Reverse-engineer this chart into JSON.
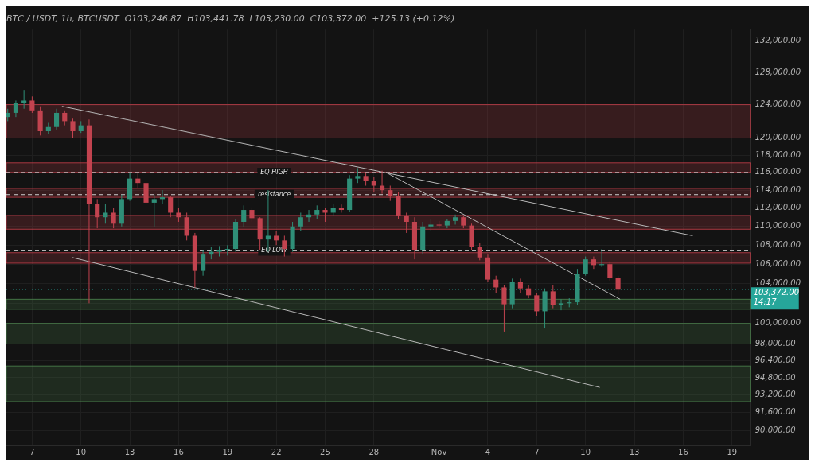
{
  "chart_data": {
    "type": "candlestick",
    "title": "BTC / USDT, 1h, BTCUSDT  O103,246.87  H103,441.78  L103,230.00  C103,372.00  +125.13 (+0.12%)",
    "x": [
      "--10-05T12:00",
      "--10-06T00:00",
      "--10-06T12:00",
      "--10-07T00:00",
      "--10-07T12:00",
      "--10-08T00:00",
      "--10-08T12:00",
      "--10-09T00:00",
      "--10-09T12:00",
      "--10-10T00:00",
      "--10-10T12:00",
      "--10-11T00:00",
      "--10-11T12:00",
      "--10-12T00:00",
      "--10-12T12:00",
      "--10-13T00:00",
      "--10-13T12:00",
      "--10-14T00:00",
      "--10-14T12:00",
      "--10-15T00:00",
      "--10-15T12:00",
      "--10-16T00:00",
      "--10-16T12:00",
      "--10-17T00:00",
      "--10-17T12:00",
      "--10-18T00:00",
      "--10-18T12:00",
      "--10-19T00:00",
      "--10-19T12:00",
      "--10-20T00:00",
      "--10-20T12:00",
      "--10-21T00:00",
      "--10-21T12:00",
      "--10-22T00:00",
      "--10-22T12:00",
      "--10-23T00:00",
      "--10-23T12:00",
      "--10-24T00:00",
      "--10-24T12:00",
      "--10-25T00:00",
      "--10-25T12:00",
      "--10-26T00:00",
      "--10-26T12:00",
      "--10-27T00:00",
      "--10-27T12:00",
      "--10-28T00:00",
      "--10-28T12:00",
      "--10-29T00:00",
      "--10-29T12:00",
      "--10-30T00:00",
      "--10-30T12:00",
      "--10-31T00:00",
      "--10-31T12:00",
      "--11-01T00:00",
      "--11-01T12:00",
      "--11-02T00:00",
      "--11-02T12:00",
      "--11-03T00:00",
      "--11-03T12:00",
      "--11-04T00:00",
      "--11-04T12:00",
      "--11-05T00:00",
      "--11-05T12:00",
      "--11-06T00:00",
      "--11-06T12:00",
      "--11-07T00:00",
      "--11-07T12:00",
      "--11-08T00:00",
      "--11-08T12:00",
      "--11-09T00:00",
      "--11-09T12:00",
      "--11-10T00:00",
      "--11-10T12:00",
      "--11-11T00:00",
      "--11-11T12:00",
      "--11-12T00:00"
    ],
    "ohlc": [
      [
        122500,
        123500,
        122000,
        123000
      ],
      [
        123000,
        124500,
        122500,
        124200
      ],
      [
        124200,
        125800,
        123500,
        124500
      ],
      [
        124500,
        125000,
        123000,
        123300
      ],
      [
        123300,
        123800,
        120300,
        120800
      ],
      [
        120800,
        121800,
        120500,
        121300
      ],
      [
        121300,
        123500,
        121000,
        123000
      ],
      [
        123000,
        123300,
        121500,
        122000
      ],
      [
        122000,
        122300,
        120000,
        120800
      ],
      [
        120800,
        122000,
        120600,
        121500
      ],
      [
        121500,
        122200,
        102000,
        112500
      ],
      [
        112500,
        113000,
        109800,
        111000
      ],
      [
        111000,
        112500,
        110300,
        111500
      ],
      [
        111500,
        112000,
        109800,
        110300
      ],
      [
        110300,
        113500,
        110000,
        113000
      ],
      [
        113000,
        116000,
        112800,
        115300
      ],
      [
        115300,
        116000,
        114200,
        114800
      ],
      [
        114800,
        115000,
        112300,
        112600
      ],
      [
        112600,
        113500,
        110000,
        113000
      ],
      [
        113000,
        114000,
        112500,
        113200
      ],
      [
        113200,
        113300,
        111000,
        111500
      ],
      [
        111500,
        112000,
        110500,
        111000
      ],
      [
        111000,
        111500,
        108500,
        109000
      ],
      [
        109000,
        109300,
        103600,
        105300
      ],
      [
        105300,
        107500,
        104800,
        107000
      ],
      [
        107000,
        107800,
        106500,
        107300
      ],
      [
        107300,
        107900,
        106800,
        107500
      ],
      [
        107500,
        108000,
        106900,
        107600
      ],
      [
        107600,
        110800,
        107300,
        110500
      ],
      [
        110500,
        112300,
        110000,
        111800
      ],
      [
        111800,
        112100,
        110500,
        110900
      ],
      [
        110900,
        111000,
        107500,
        108600
      ],
      [
        108600,
        114000,
        107300,
        109000
      ],
      [
        109000,
        109500,
        108000,
        108500
      ],
      [
        108500,
        109000,
        106800,
        107600
      ],
      [
        107600,
        110500,
        107300,
        110000
      ],
      [
        110000,
        111500,
        109500,
        111000
      ],
      [
        111000,
        111800,
        110500,
        111300
      ],
      [
        111300,
        112300,
        110800,
        111800
      ],
      [
        111800,
        112000,
        110500,
        111500
      ],
      [
        111500,
        112500,
        111200,
        112000
      ],
      [
        112000,
        112400,
        111500,
        111800
      ],
      [
        111800,
        115700,
        111600,
        115300
      ],
      [
        115300,
        116500,
        114800,
        115600
      ],
      [
        115600,
        116000,
        114500,
        115000
      ],
      [
        115000,
        115500,
        113800,
        114500
      ],
      [
        114500,
        116200,
        113600,
        114000
      ],
      [
        114000,
        114500,
        112800,
        113300
      ],
      [
        113300,
        113800,
        110800,
        111200
      ],
      [
        111200,
        111500,
        109300,
        110500
      ],
      [
        110500,
        111000,
        106500,
        107500
      ],
      [
        107500,
        110500,
        107000,
        110000
      ],
      [
        110000,
        110800,
        109500,
        110200
      ],
      [
        110200,
        110600,
        109800,
        110100
      ],
      [
        110100,
        110800,
        109800,
        110600
      ],
      [
        110600,
        111300,
        110200,
        111000
      ],
      [
        111000,
        111200,
        109800,
        110100
      ],
      [
        110100,
        110300,
        107500,
        107800
      ],
      [
        107800,
        108200,
        106400,
        106700
      ],
      [
        106700,
        107000,
        104200,
        104400
      ],
      [
        104400,
        104800,
        103000,
        103600
      ],
      [
        103600,
        103800,
        99200,
        101900
      ],
      [
        101900,
        104500,
        101500,
        104200
      ],
      [
        104200,
        104500,
        103000,
        103500
      ],
      [
        103500,
        103800,
        102500,
        102800
      ],
      [
        102800,
        103000,
        100700,
        101200
      ],
      [
        101200,
        103500,
        99500,
        103200
      ],
      [
        103200,
        103800,
        101500,
        101800
      ],
      [
        101800,
        102400,
        101300,
        102000
      ],
      [
        102000,
        102500,
        101600,
        102100
      ],
      [
        102100,
        105500,
        101800,
        105000
      ],
      [
        105000,
        106800,
        104800,
        106500
      ],
      [
        106500,
        106800,
        105500,
        105900
      ],
      [
        105900,
        107600,
        105700,
        106000
      ],
      [
        106000,
        106300,
        104300,
        104600
      ],
      [
        104600,
        104800,
        102900,
        103372
      ]
    ],
    "colors": [
      "#2f8f78",
      "#2f8f78",
      "#2f8f78",
      "#c2434f",
      "#c2434f",
      "#2f8f78",
      "#2f8f78",
      "#c2434f",
      "#c2434f",
      "#2f8f78",
      "#c2434f",
      "#c2434f",
      "#2f8f78",
      "#c2434f",
      "#2f8f78",
      "#2f8f78",
      "#c2434f",
      "#c2434f",
      "#2f8f78",
      "#2f8f78",
      "#c2434f",
      "#c2434f",
      "#c2434f",
      "#c2434f",
      "#2f8f78",
      "#2f8f78",
      "#2f8f78",
      "#2f8f78",
      "#2f8f78",
      "#2f8f78",
      "#c2434f",
      "#c2434f",
      "#2f8f78",
      "#c2434f",
      "#c2434f",
      "#2f8f78",
      "#2f8f78",
      "#2f8f78",
      "#2f8f78",
      "#c2434f",
      "#2f8f78",
      "#c2434f",
      "#2f8f78",
      "#2f8f78",
      "#c2434f",
      "#c2434f",
      "#c2434f",
      "#c2434f",
      "#c2434f",
      "#c2434f",
      "#c2434f",
      "#2f8f78",
      "#2f8f78",
      "#c2434f",
      "#2f8f78",
      "#2f8f78",
      "#c2434f",
      "#c2434f",
      "#c2434f",
      "#c2434f",
      "#c2434f",
      "#c2434f",
      "#2f8f78",
      "#c2434f",
      "#c2434f",
      "#c2434f",
      "#2f8f78",
      "#c2434f",
      "#2f8f78",
      "#2f8f78",
      "#2f8f78",
      "#2f8f78",
      "#c2434f",
      "#2f8f78",
      "#c2434f",
      "#c2434f"
    ],
    "series": [
      {
        "type": "line",
        "color": "#b8b8b8",
        "x": [
          "--10-08T20:00",
          "--11-16T14:00"
        ],
        "values": [
          123800,
          109000
        ]
      },
      {
        "type": "line",
        "color": "#b8b8b8",
        "x": [
          "--10-28T18:00",
          "--11-12T03:00"
        ],
        "values": [
          116000,
          102400
        ]
      },
      {
        "type": "line",
        "color": "#b8b8b8",
        "x": [
          "--10-09T11:00",
          "--11-10T21:00"
        ],
        "values": [
          106700,
          93900
        ]
      }
    ],
    "bands": [
      {
        "axis": "y",
        "from": 120000,
        "to": 124000,
        "color": "#c9404c"
      },
      {
        "axis": "y",
        "from": 116000,
        "to": 117100,
        "color": "#c9404c"
      },
      {
        "axis": "y",
        "from": 113200,
        "to": 114200,
        "color": "#c9404c"
      },
      {
        "axis": "y",
        "from": 109700,
        "to": 111200,
        "color": "#c9404c"
      },
      {
        "axis": "y",
        "from": 106100,
        "to": 107200,
        "color": "#c9404c"
      },
      {
        "axis": "y",
        "from": 101400,
        "to": 102400,
        "color": "#4f8a50"
      },
      {
        "axis": "y",
        "from": 98000,
        "to": 100000,
        "color": "#4f8a50"
      },
      {
        "axis": "y",
        "from": 92600,
        "to": 95900,
        "color": "#4f8a50"
      }
    ],
    "ref_lines": [
      {
        "axis": "y",
        "value": 116000,
        "label": "EQ HIGH",
        "line_style": "dashed"
      },
      {
        "axis": "y",
        "value": 113500,
        "label": "resistance",
        "line_style": "dashed"
      },
      {
        "axis": "y",
        "value": 107400,
        "label": "EQ LOW",
        "line_style": "dashed"
      },
      {
        "axis": "y",
        "value": 103372,
        "label": "103,372.00\n14:17",
        "color": "#26a69a",
        "line_style": "dotted"
      }
    ],
    "log": "y",
    "grid": true,
    "legend": false,
    "marker": "none",
    "xlim": [
      "--10-05T10:00",
      "--11-20T03:00"
    ],
    "xticks": [
      {
        "value": "--10-07",
        "label": "7"
      },
      {
        "value": "--10-10",
        "label": "10"
      },
      {
        "value": "--10-13",
        "label": "13"
      },
      {
        "value": "--10-16",
        "label": "16"
      },
      {
        "value": "--10-19",
        "label": "19"
      },
      {
        "value": "--10-22",
        "label": "22"
      },
      {
        "value": "--10-25",
        "label": "25"
      },
      {
        "value": "--10-28",
        "label": "28"
      },
      {
        "value": "--11-01",
        "label": "Nov"
      },
      {
        "value": "--11-04",
        "label": "4"
      },
      {
        "value": "--11-07",
        "label": "7"
      },
      {
        "value": "--11-10",
        "label": "10"
      },
      {
        "value": "--11-13",
        "label": "13"
      },
      {
        "value": "--11-16",
        "label": "16"
      },
      {
        "value": "--11-19",
        "label": "19"
      }
    ],
    "ylim": [
      88700,
      133500
    ],
    "yticks": [
      {
        "value": 90000,
        "label": "90,000.00"
      },
      {
        "value": 91600,
        "label": "91,600.00"
      },
      {
        "value": 93200,
        "label": "93,200.00"
      },
      {
        "value": 94800,
        "label": "94,800.00"
      },
      {
        "value": 96400,
        "label": "96,400.00"
      },
      {
        "value": 98000,
        "label": "98,000.00"
      },
      {
        "value": 100000,
        "label": "100,000.00"
      },
      {
        "value": 102000,
        "label": null
      },
      {
        "value": 104000,
        "label": "104,000.00"
      },
      {
        "value": 106000,
        "label": "106,000.00"
      },
      {
        "value": 108000,
        "label": "108,000.00"
      },
      {
        "value": 110000,
        "label": "110,000.00"
      },
      {
        "value": 112000,
        "label": "112,000.00"
      },
      {
        "value": 114000,
        "label": "114,000.00"
      },
      {
        "value": 116000,
        "label": "116,000.00"
      },
      {
        "value": 118000,
        "label": "118,000.00"
      },
      {
        "value": 120000,
        "label": "120,000.00"
      },
      {
        "value": 124000,
        "label": "124,000.00"
      },
      {
        "value": 128000,
        "label": "128,000.00"
      },
      {
        "value": 132000,
        "label": "132,000.00"
      }
    ]
  }
}
